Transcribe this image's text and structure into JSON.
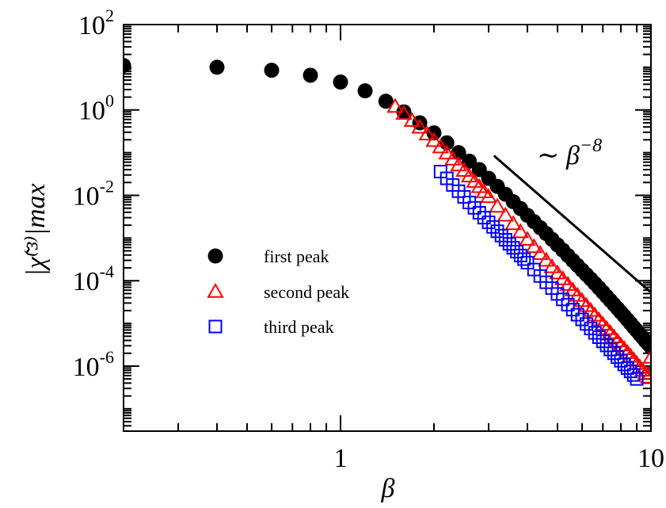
{
  "chart_data": {
    "type": "scatter",
    "x_scale": "log",
    "y_scale": "log",
    "xlim": [
      0.2,
      10
    ],
    "ylim": [
      3e-08,
      100
    ],
    "xlabel": "β",
    "ylabel": "|χ̃⁽³⁾|max",
    "legend_position": "center-left",
    "grid": false,
    "x_ticks": [
      {
        "value": 1,
        "label": "1"
      },
      {
        "value": 10,
        "label": "10"
      }
    ],
    "y_ticks": [
      {
        "value": 100,
        "base": "10",
        "exp": "2"
      },
      {
        "value": 1,
        "base": "10",
        "exp": "0"
      },
      {
        "value": 0.01,
        "base": "10",
        "exp": "-2"
      },
      {
        "value": 0.0001,
        "base": "10",
        "exp": "-4"
      },
      {
        "value": 1e-06,
        "base": "10",
        "exp": "-6"
      }
    ],
    "series": [
      {
        "name": "first peak",
        "marker": "filled-circle",
        "color": "#000000",
        "x": [
          0.2,
          0.4,
          0.6,
          0.8,
          1.0,
          1.2,
          1.4,
          1.6,
          1.8,
          2.0,
          2.2,
          2.4,
          2.6,
          2.8,
          3.0,
          3.2,
          3.4,
          3.6,
          3.8,
          4.0,
          4.2,
          4.4,
          4.6,
          4.8,
          5.0,
          5.2,
          5.4,
          5.6,
          5.8,
          6.0,
          6.2,
          6.4,
          6.6,
          6.8,
          7.0,
          7.2,
          7.4,
          7.6,
          7.8,
          8.0,
          8.2,
          8.4,
          8.6,
          8.8,
          9.0,
          9.2,
          9.4,
          9.6,
          9.8,
          10.0
        ],
        "y": [
          11.0,
          10.0,
          8.5,
          6.5,
          4.5,
          2.8,
          1.6,
          0.9,
          0.5,
          0.29,
          0.17,
          0.1,
          0.063,
          0.04,
          0.025,
          0.0162,
          0.0106,
          0.0071,
          0.0049,
          0.0034,
          0.00242,
          0.00174,
          0.00127,
          0.00093,
          0.00069,
          0.00052,
          0.00039,
          0.000297,
          0.000228,
          0.000177,
          0.000138,
          0.000109,
          8.6e-05,
          6.8e-05,
          5.4e-05,
          4.3e-05,
          3.45e-05,
          2.78e-05,
          2.25e-05,
          1.83e-05,
          1.49e-05,
          1.22e-05,
          1e-05,
          8.2e-06,
          6.8e-06,
          5.6e-06,
          4.7e-06,
          3.9e-06,
          3.3e-06,
          2.8e-06
        ]
      },
      {
        "name": "second peak",
        "marker": "open-triangle",
        "color": "#ff0000",
        "x": [
          1.5,
          1.6,
          1.7,
          1.8,
          1.9,
          2.0,
          2.1,
          2.2,
          2.3,
          2.4,
          2.5,
          2.6,
          2.7,
          2.8,
          2.9,
          3.0,
          3.2,
          3.4,
          3.6,
          3.8,
          4.0,
          4.2,
          4.4,
          4.6,
          4.8,
          5.0,
          5.2,
          5.4,
          5.6,
          5.8,
          6.0,
          6.2,
          6.4,
          6.6,
          6.8,
          7.0,
          7.2,
          7.4,
          7.6,
          7.8,
          8.0,
          8.2,
          8.4,
          8.6,
          8.8,
          9.0,
          9.2,
          9.4,
          9.6,
          9.8,
          10.0
        ],
        "y": [
          1.2,
          0.82,
          0.56,
          0.39,
          0.27,
          0.19,
          0.135,
          0.097,
          0.07,
          0.051,
          0.038,
          0.028,
          0.021,
          0.0158,
          0.012,
          0.0092,
          0.0055,
          0.0034,
          0.00215,
          0.00139,
          0.00092,
          0.00062,
          0.00043,
          0.000298,
          0.00021,
          0.000151,
          0.00011,
          8.1e-05,
          6e-05,
          4.5e-05,
          3.4e-05,
          2.6e-05,
          2e-05,
          1.55e-05,
          1.21e-05,
          9.5e-06,
          7.5e-06,
          6e-06,
          4.8e-06,
          3.85e-06,
          3.1e-06,
          2.52e-06,
          2.06e-06,
          1.69e-06,
          1.39e-06,
          1.15e-06,
          9.5e-07,
          7.9e-07,
          6.6e-07,
          5.5e-07,
          1.6e-06
        ]
      },
      {
        "name": "third peak",
        "marker": "open-square",
        "color": "#0000ff",
        "x": [
          2.1,
          2.2,
          2.3,
          2.4,
          2.5,
          2.6,
          2.7,
          2.8,
          2.9,
          3.0,
          3.1,
          3.2,
          3.3,
          3.4,
          3.5,
          3.6,
          3.7,
          3.8,
          3.9,
          4.0,
          4.2,
          4.4,
          4.6,
          4.8,
          5.0,
          5.2,
          5.4,
          5.6,
          5.8,
          6.0,
          6.2,
          6.4,
          6.6,
          6.8,
          7.0,
          7.2,
          7.4,
          7.6,
          7.8,
          8.0,
          8.2,
          8.4,
          8.6,
          8.8,
          9.0
        ],
        "y": [
          0.036,
          0.025,
          0.0175,
          0.0125,
          0.0092,
          0.0068,
          0.0051,
          0.0039,
          0.003,
          0.00233,
          0.00182,
          0.00144,
          0.00114,
          0.00091,
          0.00073,
          0.00059,
          0.00048,
          0.00039,
          0.00032,
          0.000265,
          0.000183,
          0.000129,
          9.2e-05,
          6.7e-05,
          4.9e-05,
          3.65e-05,
          2.75e-05,
          2.1e-05,
          1.6e-05,
          1.24e-05,
          9.7e-06,
          7.6e-06,
          6e-06,
          4.75e-06,
          3.8e-06,
          3.05e-06,
          2.45e-06,
          2e-06,
          1.62e-06,
          1.33e-06,
          1.09e-06,
          9e-07,
          7.5e-07,
          6.2e-07,
          5e-07
        ]
      }
    ],
    "reference_line": {
      "x": [
        3.12,
        9.95
      ],
      "y": [
        0.085,
        5.5e-05
      ]
    },
    "annotation": {
      "base": "∼ β",
      "exp": "−8"
    }
  }
}
